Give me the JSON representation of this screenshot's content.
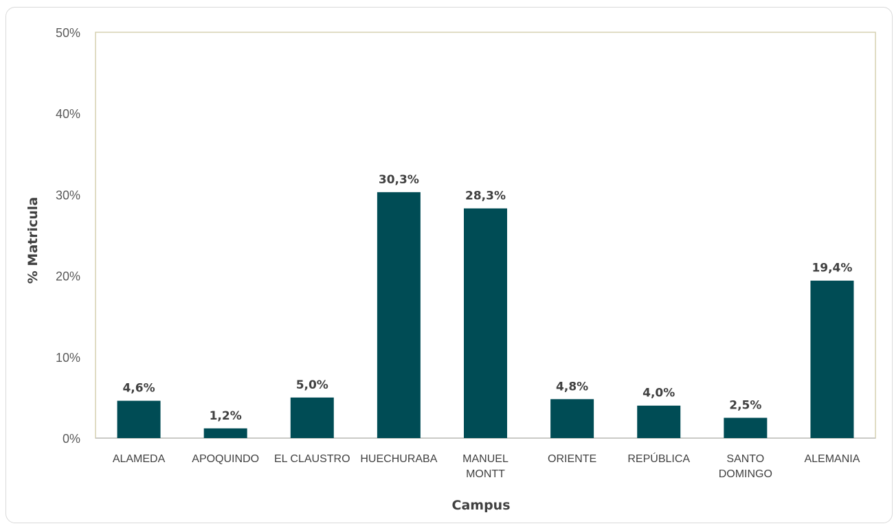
{
  "chart_data": {
    "type": "bar",
    "title": "",
    "xlabel": "Campus",
    "ylabel": "% Matricula",
    "ylim": [
      0,
      50
    ],
    "yticks": [
      "0%",
      "10%",
      "20%",
      "30%",
      "40%",
      "50%"
    ],
    "yticks_values": [
      0,
      10,
      20,
      30,
      40,
      50
    ],
    "grid": false,
    "legend": "none",
    "categories": [
      [
        "ALAMEDA"
      ],
      [
        "APOQUINDO"
      ],
      [
        "EL CLAUSTRO"
      ],
      [
        "HUECHURABA"
      ],
      [
        "MANUEL",
        "MONTT"
      ],
      [
        "ORIENTE"
      ],
      [
        "REPÚBLICA"
      ],
      [
        "SANTO",
        "DOMINGO"
      ],
      [
        "ALEMANIA"
      ]
    ],
    "values": [
      4.6,
      1.2,
      5.0,
      30.3,
      28.3,
      4.8,
      4.0,
      2.5,
      19.4
    ],
    "data_labels": [
      "4,6%",
      "1,2%",
      "5,0%",
      "30,3%",
      "28,3%",
      "4,8%",
      "4,0%",
      "2,5%",
      "19,4%"
    ],
    "colors": {
      "bar": "#004c55",
      "plot_border": "#d6d1b1",
      "axis_line": "#bfbfbf"
    }
  }
}
